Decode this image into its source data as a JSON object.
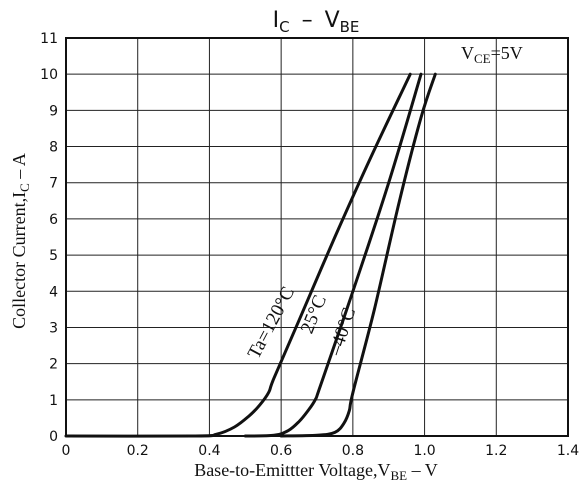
{
  "chart_data": {
    "type": "line",
    "title": {
      "main": "I",
      "sub1": "C",
      "dash": "–",
      "main2": "V",
      "sub2": "BE"
    },
    "condition": {
      "main": "V",
      "sub": "CE",
      "rest": "=5V"
    },
    "xlabel": {
      "main": "Base-to-Emittter Voltage,V",
      "sub": "BE",
      "rest": " – V"
    },
    "ylabel": {
      "main": "Collector Current,I",
      "sub": "C",
      "rest": " – A"
    },
    "xlim": [
      0,
      1.4
    ],
    "ylim": [
      0,
      11
    ],
    "x_ticks": [
      0,
      0.2,
      0.4,
      0.6,
      0.8,
      1.0,
      1.2,
      1.4
    ],
    "x_tick_labels": [
      "0",
      "0.2",
      "0.4",
      "0.6",
      "0.8",
      "1.0",
      "1.2",
      "1.4"
    ],
    "y_ticks": [
      0,
      1,
      2,
      3,
      4,
      5,
      6,
      7,
      8,
      9,
      10,
      11
    ],
    "y_tick_labels": [
      "0",
      "1",
      "2",
      "3",
      "4",
      "5",
      "6",
      "7",
      "8",
      "9",
      "10",
      "11"
    ],
    "grid": true,
    "series": [
      {
        "label": "Ta=120°C",
        "label_pos": [
          0.535,
          2.1
        ],
        "label_angle": -62,
        "points": [
          [
            0,
            0
          ],
          [
            0.36,
            0
          ],
          [
            0.42,
            0.05
          ],
          [
            0.47,
            0.25
          ],
          [
            0.51,
            0.55
          ],
          [
            0.54,
            0.85
          ],
          [
            0.565,
            1.2
          ],
          [
            0.58,
            1.6
          ],
          [
            0.65,
            3.2
          ],
          [
            0.75,
            5.5
          ],
          [
            0.85,
            7.7
          ],
          [
            0.96,
            10.0
          ]
        ]
      },
      {
        "label": "25°C",
        "label_pos": [
          0.685,
          2.8
        ],
        "label_angle": -68,
        "points": [
          [
            0.5,
            0
          ],
          [
            0.58,
            0.02
          ],
          [
            0.62,
            0.15
          ],
          [
            0.65,
            0.4
          ],
          [
            0.675,
            0.7
          ],
          [
            0.695,
            1.0
          ],
          [
            0.71,
            1.4
          ],
          [
            0.8,
            4.0
          ],
          [
            0.9,
            7.0
          ],
          [
            0.99,
            10.0
          ]
        ]
      },
      {
        "label": "–40°C",
        "label_pos": [
          0.765,
          2.2
        ],
        "label_angle": -72,
        "points": [
          [
            0.6,
            0
          ],
          [
            0.7,
            0.02
          ],
          [
            0.75,
            0.1
          ],
          [
            0.775,
            0.35
          ],
          [
            0.79,
            0.7
          ],
          [
            0.8,
            1.2
          ],
          [
            0.86,
            3.5
          ],
          [
            0.93,
            6.5
          ],
          [
            0.99,
            8.8
          ],
          [
            1.03,
            10.0
          ]
        ]
      }
    ]
  }
}
